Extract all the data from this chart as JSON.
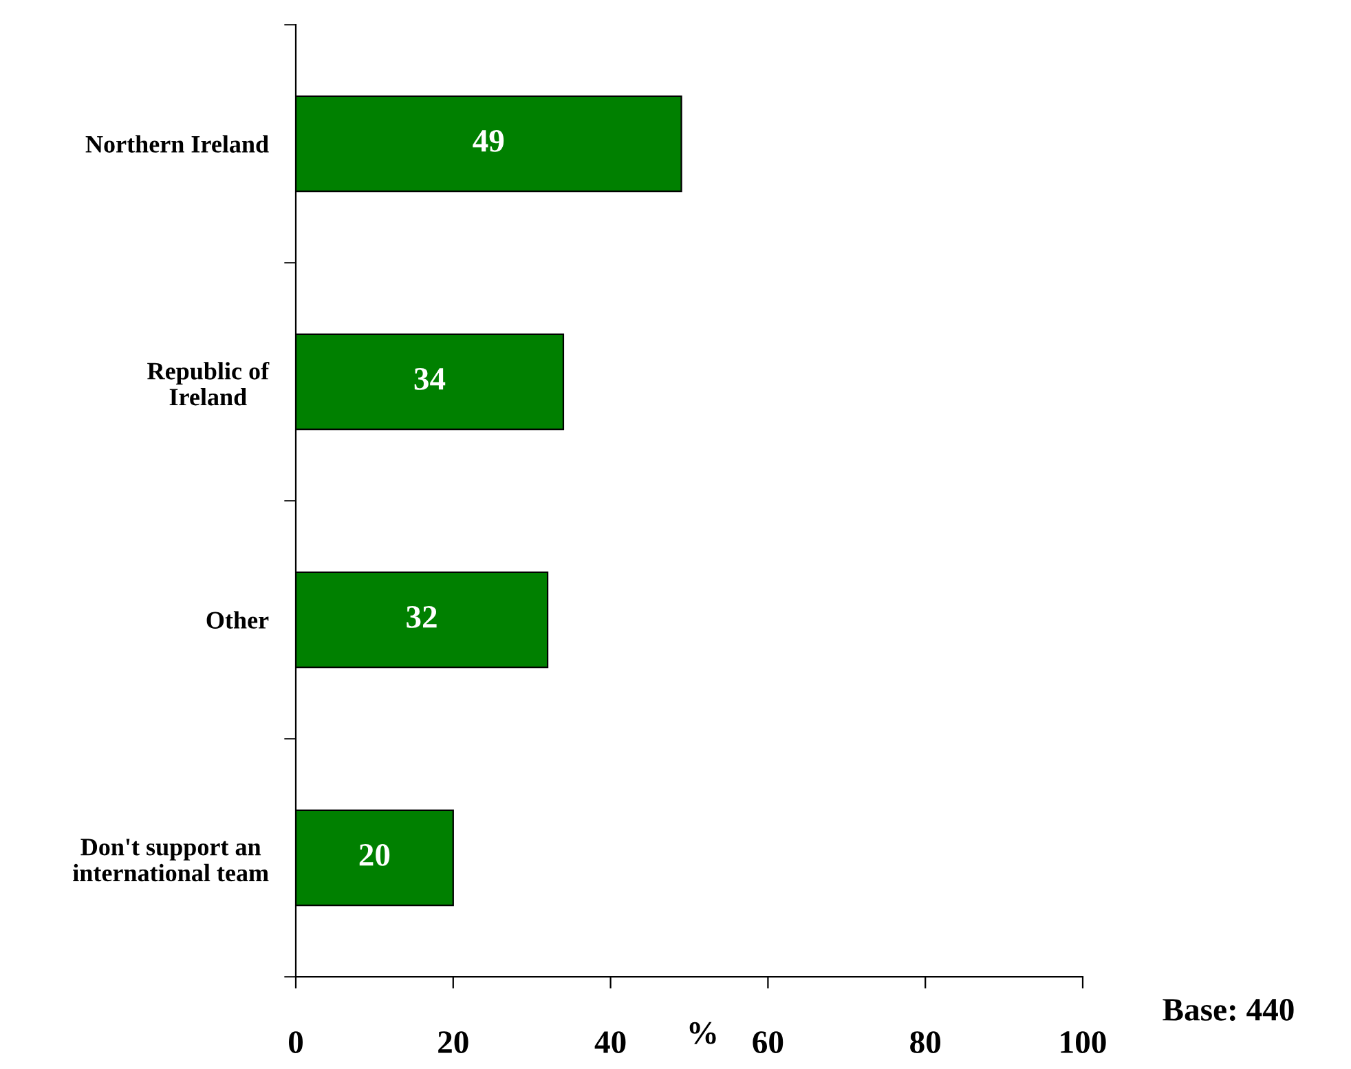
{
  "chart_data": {
    "type": "bar",
    "orientation": "horizontal",
    "categories": [
      "Northern Ireland",
      "Republic of\nIreland",
      "Other",
      "Don't support an\ninternational team"
    ],
    "values": [
      49,
      34,
      32,
      20
    ],
    "color": "#008000",
    "xlim": [
      0,
      100
    ],
    "xticks": [
      0,
      20,
      40,
      60,
      80,
      100
    ],
    "xlabel": "%",
    "data_labels": true,
    "grid": false,
    "legend": false,
    "annotations": [
      "Base: 440"
    ]
  }
}
